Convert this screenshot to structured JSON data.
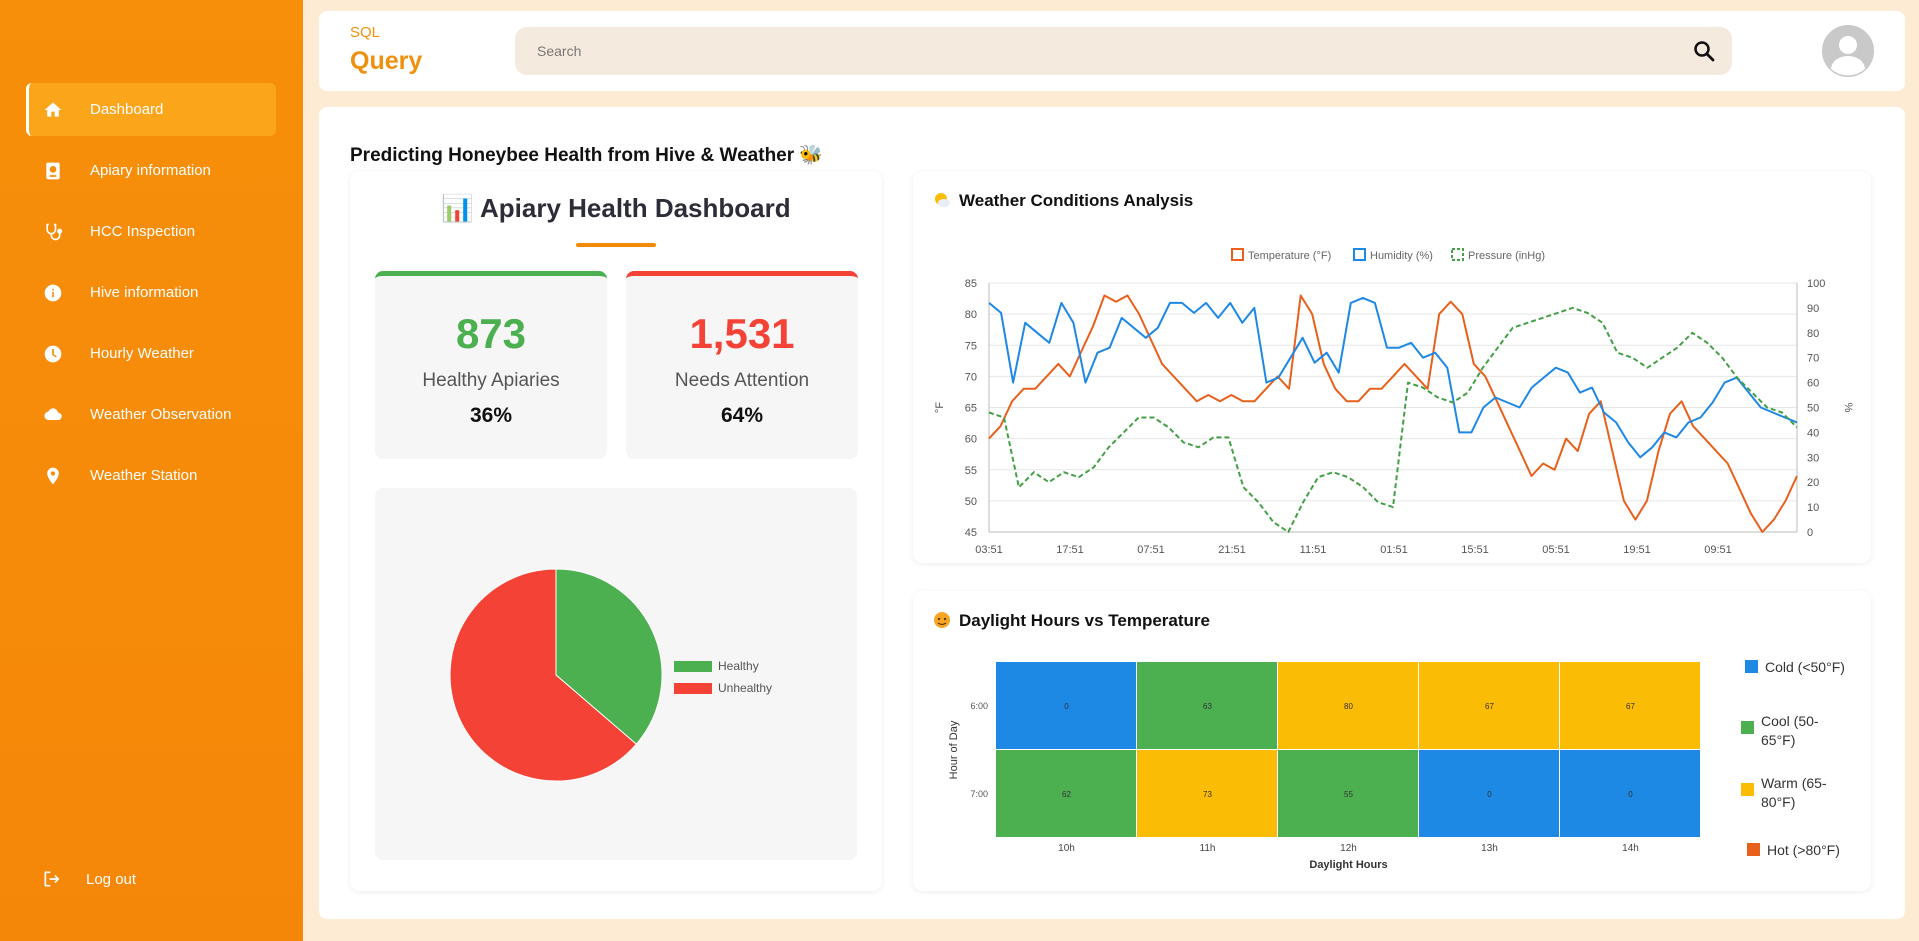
{
  "brand": {
    "small": "SQL",
    "big": "Query"
  },
  "search": {
    "placeholder": "Search"
  },
  "sidebar": {
    "items": [
      {
        "label": "Dashboard",
        "icon": "home-icon",
        "active": true
      },
      {
        "label": "Apiary information",
        "icon": "passport-icon"
      },
      {
        "label": "HCC Inspection",
        "icon": "stethoscope-icon"
      },
      {
        "label": "Hive information",
        "icon": "info-icon"
      },
      {
        "label": "Hourly Weather",
        "icon": "clock-icon"
      },
      {
        "label": "Weather Observation",
        "icon": "cloud-icon"
      },
      {
        "label": "Weather Station",
        "icon": "map-pin-icon"
      }
    ],
    "logout": "Log out"
  },
  "page": {
    "title": "Predicting Honeybee Health from Hive & Weather 🐝"
  },
  "dashboard": {
    "title": "📊 Apiary Health Dashboard",
    "healthy": {
      "value": "873",
      "label": "Healthy Apiaries",
      "percent": "36%"
    },
    "attention": {
      "value": "1,531",
      "label": "Needs Attention",
      "percent": "64%"
    }
  },
  "colors": {
    "accent": "#f28b0c",
    "healthy": "#4caf50",
    "unhealthy": "#f44336",
    "temp": "#e8601c",
    "humidity": "#1e88e5",
    "pressure": "#43a047",
    "cold": "#1e88e5",
    "cool": "#4caf50",
    "warm": "#fbbc05",
    "hot": "#e8601c"
  },
  "chart_data": [
    {
      "type": "pie",
      "labels": [
        "Healthy",
        "Unhealthy"
      ],
      "values": [
        873,
        1531
      ],
      "legend": "right"
    },
    {
      "type": "line",
      "title": "Weather Conditions Analysis",
      "ylabel_left": "°F",
      "ylabel_right": "%",
      "ylim_left": [
        45,
        85
      ],
      "ylim_right": [
        0,
        100
      ],
      "yticks_left": [
        45,
        50,
        55,
        60,
        65,
        70,
        75,
        80,
        85
      ],
      "yticks_right": [
        0,
        10,
        20,
        30,
        40,
        50,
        60,
        70,
        80,
        90,
        100
      ],
      "xticks": [
        "03:51",
        "17:51",
        "07:51",
        "21:51",
        "11:51",
        "01:51",
        "15:51",
        "05:51",
        "19:51",
        "09:51"
      ],
      "legend": "top",
      "series": [
        {
          "name": "Temperature (°F)",
          "axis": "left",
          "values": [
            60,
            62,
            66,
            68,
            68,
            70,
            72,
            70,
            74,
            78,
            83,
            82,
            83,
            80,
            76,
            72,
            70,
            68,
            66,
            67,
            66,
            67,
            66,
            66,
            68,
            70,
            68,
            83,
            80,
            72,
            68,
            66,
            66,
            68,
            68,
            70,
            72,
            70,
            68,
            80,
            82,
            80,
            72,
            70,
            66,
            62,
            58,
            54,
            56,
            55,
            60,
            58,
            64,
            66,
            58,
            50,
            47,
            50,
            58,
            64,
            66,
            62,
            60,
            58,
            56,
            52,
            48,
            45,
            47,
            50,
            54
          ]
        },
        {
          "name": "Humidity (%)",
          "axis": "right",
          "values": [
            92,
            88,
            60,
            84,
            80,
            76,
            92,
            84,
            60,
            72,
            74,
            86,
            82,
            78,
            82,
            92,
            92,
            88,
            92,
            86,
            92,
            84,
            90,
            60,
            62,
            70,
            78,
            68,
            72,
            64,
            92,
            94,
            92,
            74,
            74,
            76,
            70,
            72,
            66,
            40,
            40,
            50,
            54,
            52,
            50,
            58,
            62,
            66,
            64,
            56,
            58,
            48,
            44,
            36,
            30,
            34,
            40,
            38,
            44,
            46,
            52,
            60,
            62,
            56,
            50,
            48,
            46,
            44
          ]
        },
        {
          "name": "Pressure (inHg)",
          "axis": "right",
          "values": [
            48,
            46,
            18,
            24,
            20,
            24,
            22,
            26,
            34,
            40,
            46,
            46,
            42,
            36,
            34,
            38,
            38,
            18,
            12,
            4,
            0,
            12,
            22,
            24,
            22,
            18,
            12,
            10,
            60,
            58,
            54,
            52,
            56,
            66,
            74,
            82,
            84,
            86,
            88,
            90,
            88,
            84,
            72,
            70,
            66,
            70,
            74,
            80,
            76,
            70,
            62,
            56,
            50,
            48,
            42
          ]
        }
      ]
    },
    {
      "type": "heatmap",
      "title": "Daylight Hours vs Temperature",
      "xlabel": "Daylight Hours",
      "ylabel": "Hour of Day",
      "x": [
        "10h",
        "11h",
        "12h",
        "13h",
        "14h"
      ],
      "y": [
        "6:00",
        "7:00"
      ],
      "values": [
        [
          0,
          63,
          80,
          67,
          67
        ],
        [
          62,
          73,
          55,
          0,
          0
        ]
      ],
      "categories": [
        "cold",
        "cool",
        "warm",
        "warm",
        "warm",
        "cool",
        "warm",
        "cool",
        "cold",
        "cold"
      ],
      "legend": [
        {
          "label": "Cold (<50°F)",
          "key": "cold"
        },
        {
          "label": "Cool (50-65°F)",
          "key": "cool"
        },
        {
          "label": "Warm (65-80°F)",
          "key": "warm"
        },
        {
          "label": "Hot (>80°F)",
          "key": "hot"
        }
      ]
    }
  ]
}
